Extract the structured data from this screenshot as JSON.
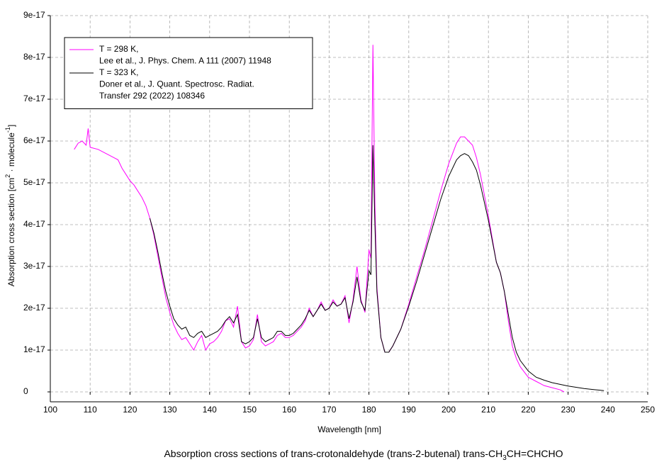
{
  "chart_data": {
    "type": "line",
    "title": [
      "Absorption cross sections of trans-crotonaldehyde (trans-2-butenal) trans-CH",
      "3",
      "CH=CHCHO"
    ],
    "x_label": "Wavelength [nm]",
    "y_label": [
      "Absorption cross section [cm",
      "2",
      " · molecule",
      "-1",
      "]"
    ],
    "xlim": [
      100,
      250
    ],
    "xticks": [
      100,
      110,
      120,
      130,
      140,
      150,
      160,
      170,
      180,
      190,
      200,
      210,
      220,
      230,
      240,
      250
    ],
    "ylim": [
      0,
      9e-17
    ],
    "yticks": [
      0,
      {
        "value": 1e-17,
        "label": "1e-17"
      },
      {
        "value": 2e-17,
        "label": "2e-17"
      },
      {
        "value": 3e-17,
        "label": "3e-17"
      },
      {
        "value": 4e-17,
        "label": "4e-17"
      },
      {
        "value": 5e-17,
        "label": "5e-17"
      },
      {
        "value": 6e-17,
        "label": "6e-17"
      },
      {
        "value": 7e-17,
        "label": "7e-17"
      },
      {
        "value": 8e-17,
        "label": "8e-17"
      },
      {
        "value": 9e-17,
        "label": "9e-17"
      }
    ],
    "grid": true,
    "legend": "upper-left",
    "series": [
      {
        "name": [
          "T = 298 K,",
          "Lee et al., J. Phys. Chem. A 111 (2007) 11948"
        ],
        "color": "#ff00ff",
        "x": [
          106,
          107,
          108,
          109,
          109.5,
          110,
          112,
          114,
          116,
          117,
          118,
          119,
          120,
          121,
          122,
          123,
          124,
          125,
          126,
          127,
          128,
          129,
          130,
          131,
          132,
          133,
          134,
          135,
          136,
          137,
          138,
          139,
          140,
          141,
          142,
          143,
          144,
          145,
          146,
          147,
          148,
          149,
          150,
          151,
          152,
          153,
          154,
          155,
          156,
          157,
          158,
          159,
          160,
          161,
          162,
          163,
          164,
          165,
          166,
          167,
          168,
          169,
          170,
          171,
          172,
          173,
          174,
          175,
          176,
          177,
          178,
          179,
          180,
          180.5,
          181,
          181.5,
          182,
          183,
          184,
          185,
          186,
          188,
          190,
          192,
          194,
          196,
          198,
          200,
          202,
          203,
          204,
          205,
          206,
          207,
          208,
          210,
          212,
          213,
          214,
          215,
          216,
          217,
          218,
          220,
          222,
          224,
          226,
          228,
          229
        ],
        "values": [
          5.8e-17,
          5.95e-17,
          6e-17,
          5.9e-17,
          6.3e-17,
          5.85e-17,
          5.8e-17,
          5.7e-17,
          5.6e-17,
          5.55e-17,
          5.35e-17,
          5.2e-17,
          5.05e-17,
          4.95e-17,
          4.8e-17,
          4.65e-17,
          4.45e-17,
          4.15e-17,
          3.75e-17,
          3.25e-17,
          2.75e-17,
          2.25e-17,
          1.9e-17,
          1.6e-17,
          1.4e-17,
          1.25e-17,
          1.3e-17,
          1.15e-17,
          1e-17,
          1.2e-17,
          1.35e-17,
          1e-17,
          1.15e-17,
          1.2e-17,
          1.3e-17,
          1.45e-17,
          1.7e-17,
          1.75e-17,
          1.55e-17,
          2.05e-17,
          1.2e-17,
          1.05e-17,
          1.1e-17,
          1.25e-17,
          1.85e-17,
          1.2e-17,
          1.1e-17,
          1.15e-17,
          1.2e-17,
          1.35e-17,
          1.4e-17,
          1.3e-17,
          1.3e-17,
          1.35e-17,
          1.45e-17,
          1.55e-17,
          1.7e-17,
          2e-17,
          1.8e-17,
          1.95e-17,
          2.15e-17,
          1.95e-17,
          2e-17,
          2.2e-17,
          2.05e-17,
          2.1e-17,
          2.3e-17,
          1.65e-17,
          2.2e-17,
          3e-17,
          2.2e-17,
          1.9e-17,
          3.4e-17,
          3.2e-17,
          8.3e-17,
          4.5e-17,
          2.5e-17,
          1.3e-17,
          9.5e-18,
          9.5e-18,
          1.1e-17,
          1.5e-17,
          2.1e-17,
          2.75e-17,
          3.4e-17,
          4.1e-17,
          4.8e-17,
          5.45e-17,
          5.95e-17,
          6.1e-17,
          6.1e-17,
          6e-17,
          5.9e-17,
          5.6e-17,
          5.2e-17,
          4.2e-17,
          3.1e-17,
          2.85e-17,
          2.4e-17,
          1.7e-17,
          1.1e-17,
          8e-18,
          6e-18,
          3.5e-18,
          2.5e-18,
          1.5e-18,
          1e-18,
          5e-19,
          0
        ]
      },
      {
        "name": [
          "T = 323 K,",
          "Doner et al., J. Quant. Spectrosc. Radiat.",
          "Transfer 292 (2022) 108346"
        ],
        "color": "#000000",
        "x": [
          125,
          126,
          127,
          128,
          129,
          130,
          131,
          132,
          133,
          134,
          135,
          136,
          137,
          138,
          139,
          140,
          141,
          142,
          143,
          144,
          145,
          146,
          147,
          148,
          149,
          150,
          151,
          152,
          153,
          154,
          155,
          156,
          157,
          158,
          159,
          160,
          161,
          162,
          163,
          164,
          165,
          166,
          167,
          168,
          169,
          170,
          171,
          172,
          173,
          174,
          175,
          176,
          177,
          178,
          179,
          180,
          180.5,
          181,
          181.5,
          182,
          183,
          184,
          185,
          186,
          188,
          190,
          192,
          194,
          196,
          198,
          200,
          202,
          203,
          204,
          205,
          206,
          207,
          208,
          210,
          212,
          213,
          214,
          215,
          216,
          217,
          218,
          220,
          222,
          224,
          226,
          228,
          230,
          232,
          234,
          236,
          238,
          239
        ],
        "values": [
          4.15e-17,
          3.8e-17,
          3.35e-17,
          2.85e-17,
          2.4e-17,
          2.05e-17,
          1.75e-17,
          1.6e-17,
          1.5e-17,
          1.55e-17,
          1.35e-17,
          1.3e-17,
          1.4e-17,
          1.45e-17,
          1.3e-17,
          1.35e-17,
          1.4e-17,
          1.45e-17,
          1.55e-17,
          1.7e-17,
          1.8e-17,
          1.65e-17,
          1.85e-17,
          1.2e-17,
          1.15e-17,
          1.2e-17,
          1.3e-17,
          1.75e-17,
          1.3e-17,
          1.2e-17,
          1.25e-17,
          1.3e-17,
          1.45e-17,
          1.45e-17,
          1.35e-17,
          1.35e-17,
          1.4e-17,
          1.5e-17,
          1.6e-17,
          1.75e-17,
          1.95e-17,
          1.8e-17,
          1.95e-17,
          2.1e-17,
          1.95e-17,
          2e-17,
          2.15e-17,
          2.05e-17,
          2.1e-17,
          2.25e-17,
          1.75e-17,
          2.15e-17,
          2.75e-17,
          2.15e-17,
          1.95e-17,
          2.9e-17,
          2.8e-17,
          5.9e-17,
          4e-17,
          2.4e-17,
          1.3e-17,
          9.5e-18,
          9.5e-18,
          1.1e-17,
          1.5e-17,
          2.05e-17,
          2.65e-17,
          3.3e-17,
          3.95e-17,
          4.6e-17,
          5.15e-17,
          5.55e-17,
          5.65e-17,
          5.7e-17,
          5.65e-17,
          5.5e-17,
          5.3e-17,
          4.95e-17,
          4.1e-17,
          3.1e-17,
          2.85e-17,
          2.4e-17,
          1.85e-17,
          1.3e-17,
          9.5e-18,
          7.5e-18,
          5e-18,
          3.5e-18,
          2.8e-18,
          2.2e-18,
          1.8e-18,
          1.4e-18,
          1.1e-18,
          8e-19,
          6e-19,
          4e-19,
          3e-19
        ]
      }
    ]
  }
}
